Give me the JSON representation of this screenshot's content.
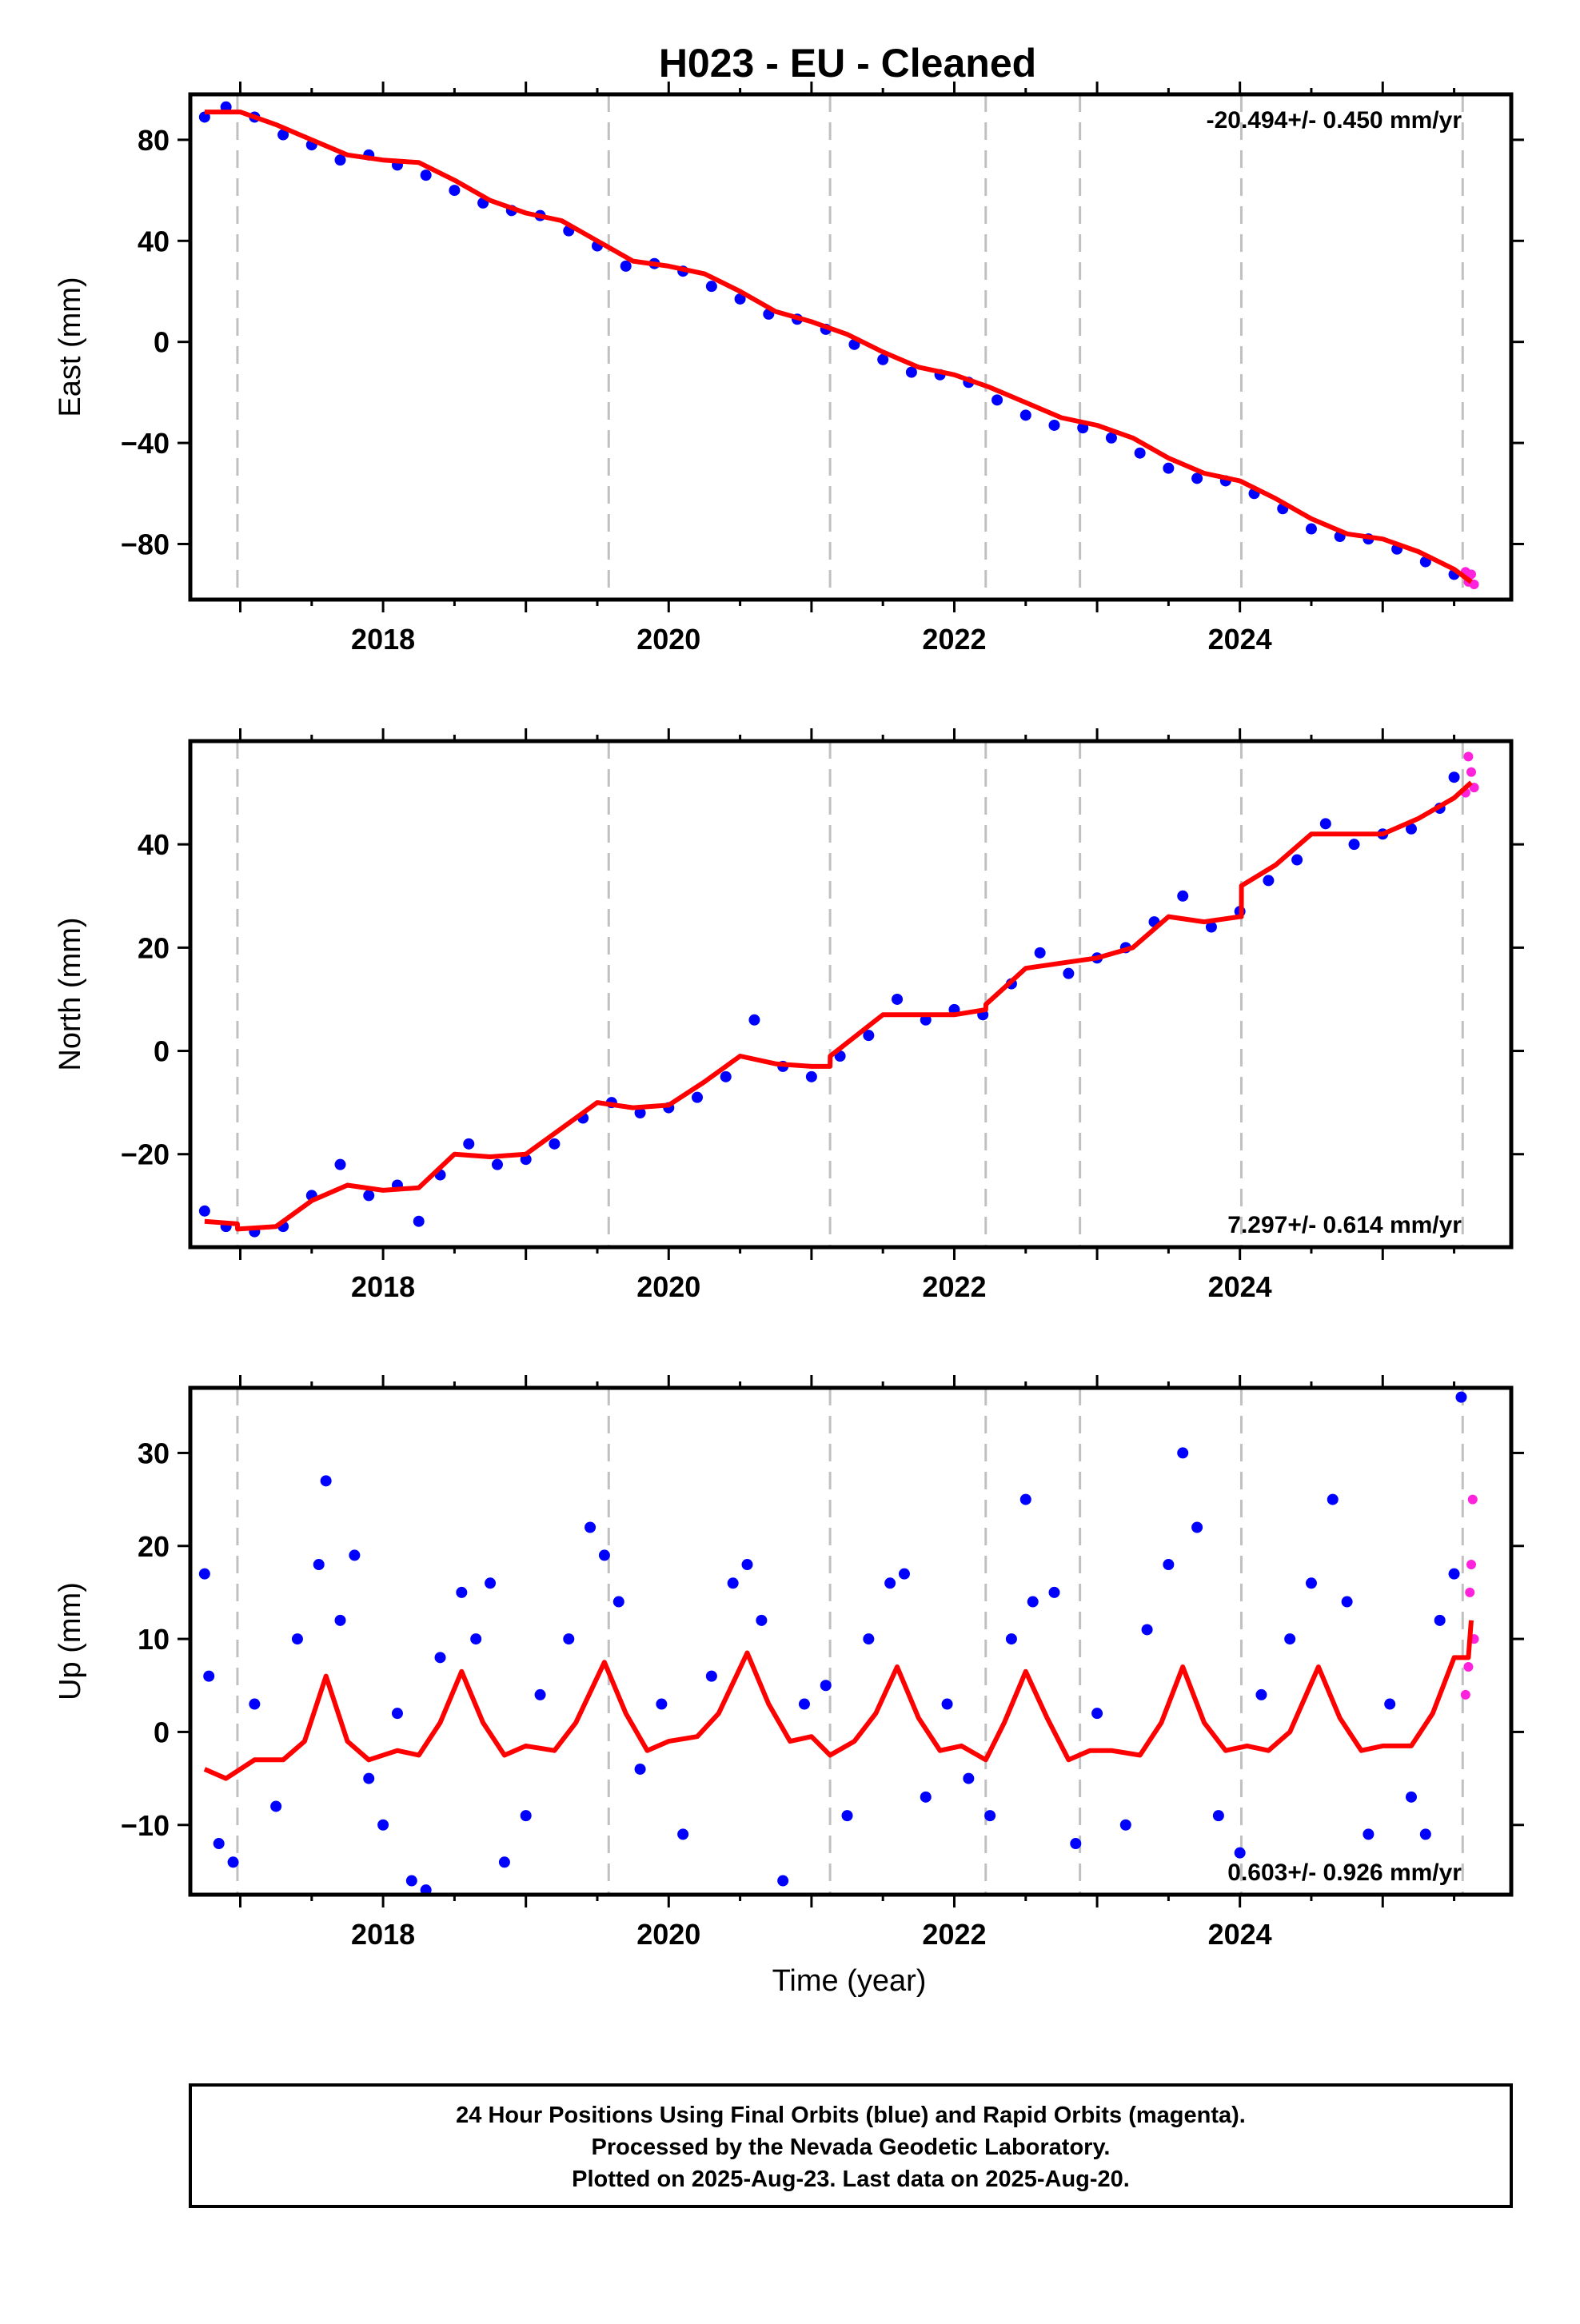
{
  "figure": {
    "title": "H023  - EU - Cleaned",
    "xlabel": "Time (year)",
    "footer": [
      "24 Hour Positions Using Final Orbits (blue) and Rapid Orbits (magenta).",
      "Processed by the Nevada Geodetic Laboratory.",
      "Plotted on 2025-Aug-23. Last data on 2025-Aug-20."
    ]
  },
  "colors": {
    "final_orbits": "#0000ff",
    "rapid_orbits": "#ff22dd",
    "model_fit": "#ff0000",
    "event_lines": "#c0c0c0",
    "frame": "#000000"
  },
  "chart_data": [
    {
      "type": "scatter",
      "name": "east",
      "ylabel": "East (mm)",
      "xlim": [
        2016.65,
        2025.9
      ],
      "ylim": [
        -102,
        98
      ],
      "xticks": [
        2018,
        2020,
        2022,
        2024
      ],
      "yticks": [
        -80,
        -40,
        0,
        40,
        80
      ],
      "rate_text": "-20.494+/- 0.450 mm/yr",
      "rate_position": "top-right",
      "event_lines": [
        2016.98,
        2019.58,
        2021.13,
        2022.22,
        2022.88,
        2024.01,
        2025.56
      ],
      "model_fit": {
        "color": "#ff0000",
        "x": [
          2016.75,
          2017.0,
          2017.25,
          2017.5,
          2017.75,
          2018.0,
          2018.25,
          2018.5,
          2018.75,
          2019.0,
          2019.25,
          2019.5,
          2019.75,
          2020.0,
          2020.25,
          2020.5,
          2020.75,
          2021.0,
          2021.25,
          2021.5,
          2021.75,
          2022.0,
          2022.25,
          2022.5,
          2022.75,
          2023.0,
          2023.25,
          2023.5,
          2023.75,
          2024.0,
          2024.25,
          2024.5,
          2024.75,
          2025.0,
          2025.25,
          2025.5,
          2025.62
        ],
        "y": [
          91,
          91,
          86,
          80,
          74,
          72,
          71,
          64,
          56,
          51,
          48,
          40,
          32,
          30,
          27,
          20,
          12,
          8,
          3,
          -4,
          -10,
          -13,
          -18,
          -24,
          -30,
          -33,
          -38,
          -46,
          -52,
          -55,
          -62,
          -70,
          -76,
          -78,
          -83,
          -90,
          -95
        ]
      },
      "series": [
        {
          "name": "Final Orbits",
          "color": "#0000ff",
          "points": [
            [
              2016.75,
              89
            ],
            [
              2016.9,
              93
            ],
            [
              2017.1,
              89
            ],
            [
              2017.3,
              82
            ],
            [
              2017.5,
              78
            ],
            [
              2017.7,
              72
            ],
            [
              2017.9,
              74
            ],
            [
              2018.1,
              70
            ],
            [
              2018.3,
              66
            ],
            [
              2018.5,
              60
            ],
            [
              2018.7,
              55
            ],
            [
              2018.9,
              52
            ],
            [
              2019.1,
              50
            ],
            [
              2019.3,
              44
            ],
            [
              2019.5,
              38
            ],
            [
              2019.7,
              30
            ],
            [
              2019.9,
              31
            ],
            [
              2020.1,
              28
            ],
            [
              2020.3,
              22
            ],
            [
              2020.5,
              17
            ],
            [
              2020.7,
              11
            ],
            [
              2020.9,
              9
            ],
            [
              2021.1,
              5
            ],
            [
              2021.3,
              -1
            ],
            [
              2021.5,
              -7
            ],
            [
              2021.7,
              -12
            ],
            [
              2021.9,
              -13
            ],
            [
              2022.1,
              -16
            ],
            [
              2022.3,
              -23
            ],
            [
              2022.5,
              -29
            ],
            [
              2022.7,
              -33
            ],
            [
              2022.9,
              -34
            ],
            [
              2023.1,
              -38
            ],
            [
              2023.3,
              -44
            ],
            [
              2023.5,
              -50
            ],
            [
              2023.7,
              -54
            ],
            [
              2023.9,
              -55
            ],
            [
              2024.1,
              -60
            ],
            [
              2024.3,
              -66
            ],
            [
              2024.5,
              -74
            ],
            [
              2024.7,
              -77
            ],
            [
              2024.9,
              -78
            ],
            [
              2025.1,
              -82
            ],
            [
              2025.3,
              -87
            ],
            [
              2025.5,
              -92
            ]
          ]
        },
        {
          "name": "Rapid Orbits",
          "color": "#ff22dd",
          "points": [
            [
              2025.58,
              -91
            ],
            [
              2025.6,
              -95
            ],
            [
              2025.62,
              -92
            ],
            [
              2025.64,
              -96
            ]
          ]
        }
      ]
    },
    {
      "type": "scatter",
      "name": "north",
      "ylabel": "North (mm)",
      "xlim": [
        2016.65,
        2025.9
      ],
      "ylim": [
        -38,
        60
      ],
      "xticks": [
        2018,
        2020,
        2022,
        2024
      ],
      "yticks": [
        -20,
        0,
        20,
        40
      ],
      "rate_text": "7.297+/- 0.614 mm/yr",
      "rate_position": "bottom-right",
      "event_lines": [
        2016.98,
        2019.58,
        2021.13,
        2022.22,
        2022.88,
        2024.01,
        2025.56
      ],
      "model_fit": {
        "color": "#ff0000",
        "x": [
          2016.75,
          2016.98,
          2016.981,
          2017.25,
          2017.5,
          2017.75,
          2018.0,
          2018.25,
          2018.5,
          2018.75,
          2019.0,
          2019.25,
          2019.5,
          2019.75,
          2020.0,
          2020.25,
          2020.5,
          2020.75,
          2021.0,
          2021.13,
          2021.131,
          2021.5,
          2021.75,
          2022.0,
          2022.22,
          2022.221,
          2022.5,
          2022.75,
          2023.0,
          2023.25,
          2023.5,
          2023.75,
          2024.0,
          2024.01,
          2024.011,
          2024.25,
          2024.5,
          2024.75,
          2025.0,
          2025.25,
          2025.5,
          2025.62
        ],
        "y": [
          -33,
          -33.5,
          -34.5,
          -34,
          -29,
          -26,
          -27,
          -26.5,
          -20,
          -20.5,
          -20,
          -15,
          -10,
          -11,
          -10.5,
          -6,
          -1,
          -2.5,
          -3,
          -3,
          -1,
          7,
          7,
          7,
          8,
          9,
          16,
          17,
          18,
          20,
          26,
          25,
          26,
          26,
          32,
          36,
          42,
          42,
          42,
          45,
          49,
          52
        ]
      },
      "series": [
        {
          "name": "Final Orbits",
          "color": "#0000ff",
          "points": [
            [
              2016.75,
              -31
            ],
            [
              2016.9,
              -34
            ],
            [
              2017.1,
              -35
            ],
            [
              2017.3,
              -34
            ],
            [
              2017.5,
              -28
            ],
            [
              2017.7,
              -22
            ],
            [
              2017.9,
              -28
            ],
            [
              2018.1,
              -26
            ],
            [
              2018.25,
              -33
            ],
            [
              2018.4,
              -24
            ],
            [
              2018.6,
              -18
            ],
            [
              2018.8,
              -22
            ],
            [
              2019.0,
              -21
            ],
            [
              2019.2,
              -18
            ],
            [
              2019.4,
              -13
            ],
            [
              2019.6,
              -10
            ],
            [
              2019.8,
              -12
            ],
            [
              2020.0,
              -11
            ],
            [
              2020.2,
              -9
            ],
            [
              2020.4,
              -5
            ],
            [
              2020.6,
              6
            ],
            [
              2020.8,
              -3
            ],
            [
              2021.0,
              -5
            ],
            [
              2021.2,
              -1
            ],
            [
              2021.4,
              3
            ],
            [
              2021.6,
              10
            ],
            [
              2021.8,
              6
            ],
            [
              2022.0,
              8
            ],
            [
              2022.2,
              7
            ],
            [
              2022.4,
              13
            ],
            [
              2022.6,
              19
            ],
            [
              2022.8,
              15
            ],
            [
              2023.0,
              18
            ],
            [
              2023.2,
              20
            ],
            [
              2023.4,
              25
            ],
            [
              2023.6,
              30
            ],
            [
              2023.8,
              24
            ],
            [
              2024.0,
              27
            ],
            [
              2024.2,
              33
            ],
            [
              2024.4,
              37
            ],
            [
              2024.6,
              44
            ],
            [
              2024.8,
              40
            ],
            [
              2025.0,
              42
            ],
            [
              2025.2,
              43
            ],
            [
              2025.4,
              47
            ],
            [
              2025.5,
              53
            ]
          ]
        },
        {
          "name": "Rapid Orbits",
          "color": "#ff22dd",
          "points": [
            [
              2025.58,
              50
            ],
            [
              2025.6,
              57
            ],
            [
              2025.62,
              54
            ],
            [
              2025.64,
              51
            ]
          ]
        }
      ]
    },
    {
      "type": "scatter",
      "name": "up",
      "ylabel": "Up (mm)",
      "xlim": [
        2016.65,
        2025.9
      ],
      "ylim": [
        -17.5,
        37
      ],
      "xticks": [
        2018,
        2020,
        2022,
        2024
      ],
      "yticks": [
        -10,
        0,
        10,
        20,
        30
      ],
      "rate_text": "0.603+/- 0.926 mm/yr",
      "rate_position": "bottom-right",
      "event_lines": [
        2016.98,
        2019.58,
        2021.13,
        2022.22,
        2022.88,
        2024.01,
        2025.56
      ],
      "model_fit": {
        "color": "#ff0000",
        "x": [
          2016.75,
          2016.9,
          2017.1,
          2017.3,
          2017.45,
          2017.6,
          2017.75,
          2017.9,
          2018.1,
          2018.25,
          2018.4,
          2018.55,
          2018.7,
          2018.85,
          2019.0,
          2019.2,
          2019.35,
          2019.55,
          2019.7,
          2019.85,
          2020.0,
          2020.2,
          2020.35,
          2020.55,
          2020.7,
          2020.85,
          2021.0,
          2021.13,
          2021.3,
          2021.45,
          2021.6,
          2021.75,
          2021.9,
          2022.05,
          2022.22,
          2022.35,
          2022.5,
          2022.65,
          2022.8,
          2022.95,
          2023.1,
          2023.3,
          2023.45,
          2023.6,
          2023.75,
          2023.9,
          2024.05,
          2024.2,
          2024.35,
          2024.55,
          2024.7,
          2024.85,
          2025.0,
          2025.2,
          2025.35,
          2025.5,
          2025.6,
          2025.62
        ],
        "y": [
          -4,
          -5,
          -3,
          -3,
          -1,
          6,
          -1,
          -3,
          -2,
          -2.5,
          1,
          6.5,
          1,
          -2.5,
          -1.5,
          -2,
          1,
          7.5,
          2,
          -2,
          -1,
          -0.5,
          2,
          8.5,
          3,
          -1,
          -0.5,
          -2.5,
          -1,
          2,
          7,
          1.5,
          -2,
          -1.5,
          -3,
          1,
          6.5,
          1.5,
          -3,
          -2,
          -2,
          -2.5,
          1,
          7,
          1,
          -2,
          -1.5,
          -2,
          0,
          7,
          1.5,
          -2,
          -1.5,
          -1.5,
          2,
          8,
          8,
          12
        ]
      },
      "series": [
        {
          "name": "Final Orbits",
          "color": "#0000ff",
          "points": [
            [
              2016.75,
              17
            ],
            [
              2016.78,
              6
            ],
            [
              2016.85,
              -12
            ],
            [
              2016.95,
              -14
            ],
            [
              2017.1,
              3
            ],
            [
              2017.25,
              -8
            ],
            [
              2017.4,
              10
            ],
            [
              2017.55,
              18
            ],
            [
              2017.6,
              27
            ],
            [
              2017.7,
              12
            ],
            [
              2017.8,
              19
            ],
            [
              2017.9,
              -5
            ],
            [
              2018.0,
              -10
            ],
            [
              2018.1,
              2
            ],
            [
              2018.2,
              -16
            ],
            [
              2018.3,
              -17
            ],
            [
              2018.4,
              8
            ],
            [
              2018.55,
              15
            ],
            [
              2018.65,
              10
            ],
            [
              2018.75,
              16
            ],
            [
              2018.85,
              -14
            ],
            [
              2019.0,
              -9
            ],
            [
              2019.1,
              4
            ],
            [
              2019.3,
              10
            ],
            [
              2019.45,
              22
            ],
            [
              2019.55,
              19
            ],
            [
              2019.65,
              14
            ],
            [
              2019.8,
              -4
            ],
            [
              2019.95,
              3
            ],
            [
              2020.1,
              -11
            ],
            [
              2020.3,
              6
            ],
            [
              2020.45,
              16
            ],
            [
              2020.55,
              18
            ],
            [
              2020.65,
              12
            ],
            [
              2020.8,
              -16
            ],
            [
              2020.95,
              3
            ],
            [
              2021.1,
              5
            ],
            [
              2021.25,
              -9
            ],
            [
              2021.4,
              10
            ],
            [
              2021.55,
              16
            ],
            [
              2021.65,
              17
            ],
            [
              2021.8,
              -7
            ],
            [
              2021.95,
              3
            ],
            [
              2022.1,
              -5
            ],
            [
              2022.25,
              -9
            ],
            [
              2022.4,
              10
            ],
            [
              2022.5,
              25
            ],
            [
              2022.55,
              14
            ],
            [
              2022.7,
              15
            ],
            [
              2022.85,
              -12
            ],
            [
              2023.0,
              2
            ],
            [
              2023.2,
              -10
            ],
            [
              2023.35,
              11
            ],
            [
              2023.5,
              18
            ],
            [
              2023.6,
              30
            ],
            [
              2023.7,
              22
            ],
            [
              2023.85,
              -9
            ],
            [
              2024.0,
              -13
            ],
            [
              2024.15,
              4
            ],
            [
              2024.35,
              10
            ],
            [
              2024.5,
              16
            ],
            [
              2024.65,
              25
            ],
            [
              2024.75,
              14
            ],
            [
              2024.9,
              -11
            ],
            [
              2025.05,
              3
            ],
            [
              2025.2,
              -7
            ],
            [
              2025.3,
              -11
            ],
            [
              2025.4,
              12
            ],
            [
              2025.5,
              17
            ],
            [
              2025.55,
              36
            ]
          ]
        },
        {
          "name": "Rapid Orbits",
          "color": "#ff22dd",
          "points": [
            [
              2025.58,
              4
            ],
            [
              2025.6,
              7
            ],
            [
              2025.61,
              15
            ],
            [
              2025.62,
              18
            ],
            [
              2025.63,
              25
            ],
            [
              2025.64,
              10
            ]
          ]
        }
      ]
    }
  ]
}
